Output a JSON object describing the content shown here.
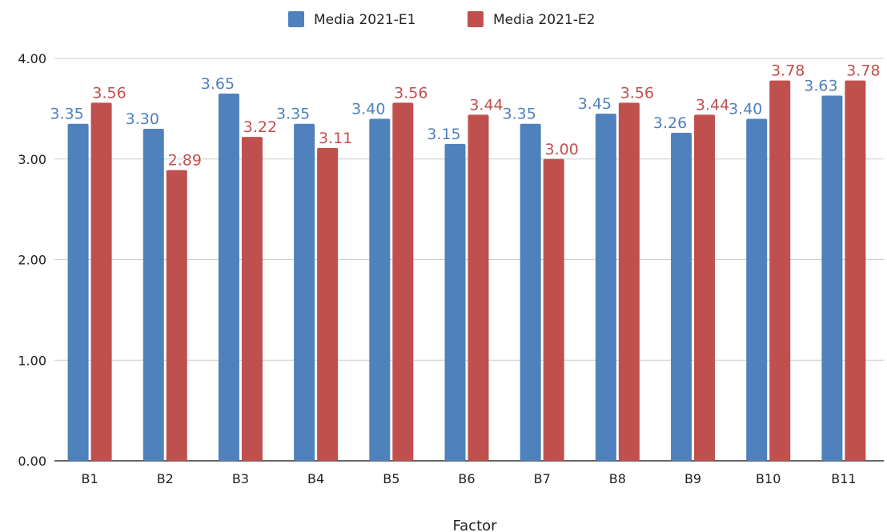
{
  "chart_data": {
    "type": "bar",
    "categories": [
      "B1",
      "B2",
      "B3",
      "B4",
      "B5",
      "B6",
      "B7",
      "B8",
      "B9",
      "B10",
      "B11"
    ],
    "series": [
      {
        "name": "Media 2021-E1",
        "color": "#4f81bd",
        "values": [
          3.35,
          3.3,
          3.65,
          3.35,
          3.4,
          3.15,
          3.35,
          3.45,
          3.26,
          3.4,
          3.63
        ],
        "labels": [
          "3.35",
          "3.30",
          "3.65",
          "3.35",
          "3.40",
          "3.15",
          "3.35",
          "3.45",
          "3.26",
          "3.40",
          "3.63"
        ]
      },
      {
        "name": "Media 2021-E2",
        "color": "#c0504d",
        "values": [
          3.56,
          2.89,
          3.22,
          3.11,
          3.56,
          3.44,
          3.0,
          3.56,
          3.44,
          3.78,
          3.78
        ],
        "labels": [
          "3.56",
          "2.89",
          "3.22",
          "3.11",
          "3.56",
          "3.44",
          "3.00",
          "3.56",
          "3.44",
          "3.78",
          "3.78"
        ]
      }
    ],
    "title": "",
    "xlabel": "Factor",
    "ylabel": "",
    "ylim": [
      0,
      4
    ],
    "yticks": [
      0,
      1,
      2,
      3,
      4
    ],
    "ytick_labels": [
      "0.00",
      "1.00",
      "2.00",
      "3.00",
      "4.00"
    ],
    "grid": true,
    "legend_position": "top-center"
  }
}
